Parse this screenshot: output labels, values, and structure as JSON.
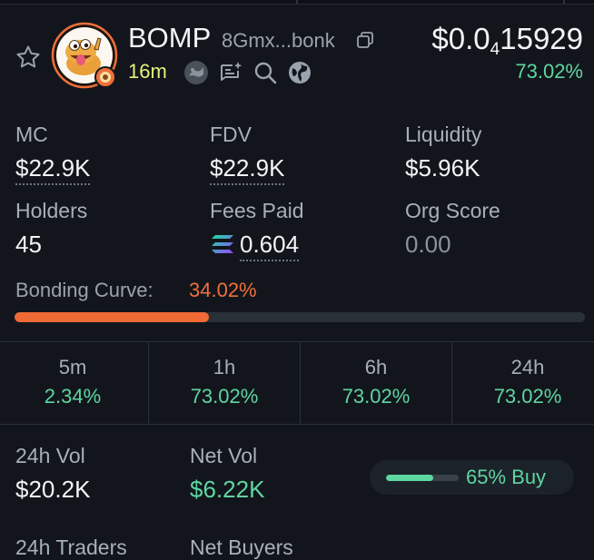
{
  "token": {
    "name": "BOMP",
    "address": "8Gmx...bonk",
    "age": "16m",
    "price_prefix": "$0.0",
    "price_zero_count": "4",
    "price_digits": "15929",
    "price_change": "73.02%"
  },
  "stats": {
    "mc": {
      "label": "MC",
      "value": "$22.9K"
    },
    "fdv": {
      "label": "FDV",
      "value": "$22.9K"
    },
    "liquidity": {
      "label": "Liquidity",
      "value": "$5.96K"
    },
    "holders": {
      "label": "Holders",
      "value": "45"
    },
    "fees": {
      "label": "Fees Paid",
      "value": "0.604"
    },
    "org_score": {
      "label": "Org Score",
      "value": "0.00"
    }
  },
  "bonding": {
    "label": "Bonding Curve:",
    "value": "34.02%",
    "progress": 0.3402
  },
  "timeframes": [
    {
      "label": "5m",
      "value": "2.34%"
    },
    {
      "label": "1h",
      "value": "73.02%"
    },
    {
      "label": "6h",
      "value": "73.02%"
    },
    {
      "label": "24h",
      "value": "73.02%"
    }
  ],
  "volume": {
    "vol_label": "24h Vol",
    "vol_value": "$20.2K",
    "net_label": "Net Vol",
    "net_value": "$6.22K",
    "buy_text": "65% Buy",
    "buy_fraction": 0.65
  },
  "cutoff": {
    "traders_label": "24h Traders",
    "net_buyers_label": "Net Buyers"
  },
  "colors": {
    "positive": "#5ed6a0",
    "bonding": "#ef6a35",
    "age": "#e6f07a",
    "avatar_ring": "#f0703a"
  }
}
